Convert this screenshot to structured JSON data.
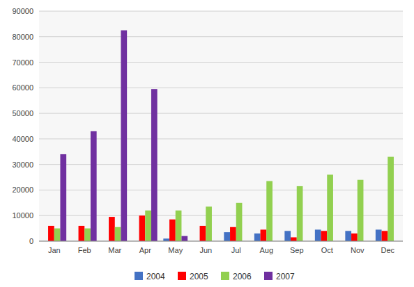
{
  "chart_data": {
    "type": "bar",
    "categories": [
      "Jan",
      "Feb",
      "Mar",
      "Apr",
      "May",
      "Jun",
      "Jul",
      "Aug",
      "Sep",
      "Oct",
      "Nov",
      "Dec"
    ],
    "series": [
      {
        "name": "2004",
        "color": "#4472C4",
        "values": [
          0,
          0,
          0,
          0,
          1000,
          0,
          3500,
          3000,
          4000,
          4500,
          4000,
          4500
        ]
      },
      {
        "name": "2005",
        "color": "#FF0000",
        "values": [
          6000,
          6000,
          9500,
          10000,
          8500,
          6000,
          5500,
          4500,
          1500,
          4000,
          3000,
          4000
        ]
      },
      {
        "name": "2006",
        "color": "#92D050",
        "values": [
          5000,
          5000,
          5500,
          12000,
          12000,
          13500,
          15000,
          23500,
          21500,
          26000,
          24000,
          33000
        ]
      },
      {
        "name": "2007",
        "color": "#7030A0",
        "values": [
          34000,
          43000,
          82500,
          59500,
          2000,
          0,
          0,
          0,
          0,
          0,
          0,
          0
        ]
      }
    ],
    "ylim": [
      0,
      90000
    ],
    "yticks": [
      0,
      10000,
      20000,
      30000,
      40000,
      50000,
      60000,
      70000,
      80000,
      90000
    ],
    "grid": true,
    "legend": "bottom"
  }
}
